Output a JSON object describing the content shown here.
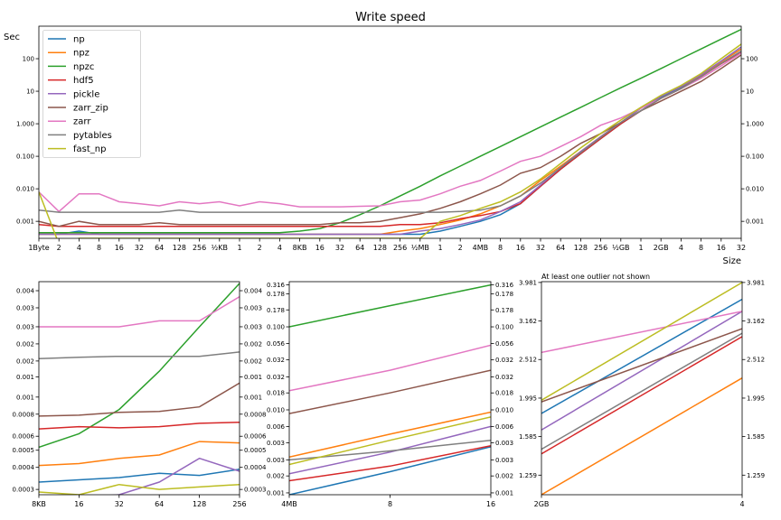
{
  "colors": {
    "np": "#1f77b4",
    "npz": "#ff7f0e",
    "npzc": "#2ca02c",
    "hdf5": "#d62728",
    "pickle": "#9467bd",
    "zarr_zip": "#8c564b",
    "zarr": "#e377c2",
    "pytables": "#7f7f7f",
    "fast_np": "#bcbd22"
  },
  "chart_data": [
    {
      "type": "line",
      "panel": "main",
      "title": "Write speed",
      "xlabel": "Size",
      "ylabel": "Sec",
      "yscale": "log",
      "grid": false,
      "legend_position": "upper-left",
      "x_tick_labels": [
        "1Byte",
        "2",
        "4",
        "8",
        "16",
        "32",
        "64",
        "128",
        "256",
        "½KB",
        "1",
        "2",
        "4",
        "8KB",
        "16",
        "32",
        "64",
        "128",
        "256",
        "½MB",
        "1",
        "2",
        "4MB",
        "8",
        "16",
        "32",
        "64",
        "128",
        "256",
        "½GB",
        "1",
        "2GB",
        "4",
        "8",
        "16",
        "32"
      ],
      "y_tick_values": [
        0.001,
        0.01,
        0.1,
        1,
        10,
        100
      ],
      "y_tick_labels": [
        "0.001",
        "0.010",
        "0.100",
        "1.000",
        "10",
        "100"
      ],
      "ylim": [
        0.0003,
        1000
      ],
      "series": [
        {
          "name": "np",
          "key": "np",
          "values": [
            0.0004,
            0.0004,
            0.0005,
            0.0004,
            0.0004,
            0.0004,
            0.0004,
            0.0004,
            0.0004,
            0.0004,
            0.0004,
            0.0004,
            0.0004,
            0.0004,
            0.0004,
            0.0004,
            0.0004,
            0.0004,
            0.0004,
            0.0004,
            0.0005,
            0.0007,
            0.001,
            0.0016,
            0.0035,
            0.012,
            0.04,
            0.12,
            0.35,
            1.0,
            2.5,
            6.5,
            13,
            30,
            80,
            200
          ]
        },
        {
          "name": "npz",
          "key": "npz",
          "values": [
            0.0004,
            0.0004,
            0.0004,
            0.0004,
            0.0004,
            0.0004,
            0.0004,
            0.0004,
            0.0004,
            0.0004,
            0.0004,
            0.0004,
            0.0004,
            0.0004,
            0.0004,
            0.0004,
            0.0004,
            0.0004,
            0.0005,
            0.0006,
            0.0008,
            0.0011,
            0.0017,
            0.003,
            0.006,
            0.018,
            0.05,
            0.14,
            0.4,
            1.1,
            3,
            7,
            14,
            30,
            80,
            200
          ]
        },
        {
          "name": "npzc",
          "key": "npzc",
          "values": [
            0.00045,
            0.00045,
            0.00045,
            0.00045,
            0.00045,
            0.00045,
            0.00045,
            0.00045,
            0.00045,
            0.00045,
            0.00045,
            0.00045,
            0.00045,
            0.0005,
            0.0006,
            0.0009,
            0.0016,
            0.003,
            0.006,
            0.012,
            0.025,
            0.05,
            0.1,
            0.2,
            0.4,
            0.8,
            1.6,
            3.2,
            6.4,
            12.8,
            25,
            50,
            100,
            200,
            400,
            800
          ]
        },
        {
          "name": "hdf5",
          "key": "hdf5",
          "values": [
            0.0008,
            0.0007,
            0.0007,
            0.0007,
            0.0007,
            0.0007,
            0.0007,
            0.0007,
            0.0007,
            0.0007,
            0.0007,
            0.0007,
            0.0007,
            0.0007,
            0.0007,
            0.0007,
            0.0007,
            0.0007,
            0.0008,
            0.0008,
            0.0009,
            0.0012,
            0.0015,
            0.002,
            0.0035,
            0.012,
            0.04,
            0.12,
            0.35,
            1.0,
            2.5,
            6,
            12,
            28,
            70,
            160
          ]
        },
        {
          "name": "pickle",
          "key": "pickle",
          "values": [
            0.0004,
            0.0004,
            0.0004,
            0.0004,
            0.0004,
            0.0004,
            0.0004,
            0.0004,
            0.0004,
            0.0004,
            0.0004,
            0.0004,
            0.0004,
            0.0004,
            0.0004,
            0.0004,
            0.0004,
            0.0004,
            0.0004,
            0.0005,
            0.0006,
            0.0008,
            0.0011,
            0.002,
            0.004,
            0.013,
            0.045,
            0.14,
            0.4,
            1.1,
            3,
            7,
            14,
            32,
            85,
            230
          ]
        },
        {
          "name": "zarr_zip",
          "key": "zarr_zip",
          "values": [
            0.001,
            0.0007,
            0.001,
            0.0008,
            0.0008,
            0.0008,
            0.0009,
            0.0008,
            0.0008,
            0.0008,
            0.0008,
            0.0008,
            0.0008,
            0.0008,
            0.0008,
            0.0009,
            0.0009,
            0.001,
            0.0013,
            0.0017,
            0.0025,
            0.004,
            0.007,
            0.013,
            0.03,
            0.045,
            0.1,
            0.25,
            0.5,
            1.1,
            2.5,
            5,
            10,
            20,
            50,
            130
          ]
        },
        {
          "name": "zarr",
          "key": "zarr",
          "values": [
            0.008,
            0.002,
            0.007,
            0.007,
            0.004,
            0.0035,
            0.003,
            0.004,
            0.0035,
            0.004,
            0.003,
            0.004,
            0.0035,
            0.0028,
            0.0028,
            0.0028,
            0.0029,
            0.003,
            0.004,
            0.0045,
            0.007,
            0.012,
            0.018,
            0.035,
            0.07,
            0.1,
            0.2,
            0.4,
            0.9,
            1.5,
            3,
            6,
            12,
            25,
            60,
            150
          ]
        },
        {
          "name": "pytables",
          "key": "pytables",
          "values": [
            0.0022,
            0.0019,
            0.0019,
            0.0019,
            0.0019,
            0.0019,
            0.0019,
            0.0022,
            0.0019,
            0.0019,
            0.0019,
            0.0019,
            0.0019,
            0.0019,
            0.0019,
            0.0019,
            0.0019,
            0.0019,
            0.0019,
            0.0019,
            0.0019,
            0.002,
            0.0022,
            0.003,
            0.006,
            0.015,
            0.045,
            0.13,
            0.38,
            1.1,
            2.5,
            6,
            12,
            28,
            72,
            170
          ]
        },
        {
          "name": "fast_np",
          "key": "fast_np",
          "values": [
            0.008,
            0.0002,
            0.0003,
            0.0003,
            0.0003,
            0.0003,
            0.0003,
            0.0003,
            0.0003,
            0.0003,
            0.0003,
            0.0003,
            0.0003,
            0.0003,
            0.0003,
            0.0003,
            0.0003,
            0.0003,
            0.0003,
            0.0003,
            0.001,
            0.0015,
            0.0025,
            0.004,
            0.008,
            0.02,
            0.06,
            0.18,
            0.5,
            1.3,
            3.2,
            7.5,
            15,
            35,
            100,
            280
          ]
        }
      ]
    },
    {
      "type": "line",
      "panel": "small-sizes",
      "x_tick_labels": [
        "8KB",
        "16",
        "32",
        "64",
        "128",
        "256"
      ],
      "yscale": "log",
      "ylim": [
        0.00028,
        0.0045
      ],
      "y_ticks": [
        {
          "v": 0.0003,
          "l": "0.0003"
        },
        {
          "v": 0.0004,
          "l": "0.0004"
        },
        {
          "v": 0.0005,
          "l": "0.0005"
        },
        {
          "v": 0.0006,
          "l": "0.0006"
        },
        {
          "v": 0.0008,
          "l": "0.0008"
        },
        {
          "v": 0.001,
          "l": "0.001"
        },
        {
          "v": 0.0013,
          "l": "0.001"
        },
        {
          "v": 0.0016,
          "l": "0.002"
        },
        {
          "v": 0.002,
          "l": "0.002"
        },
        {
          "v": 0.0025,
          "l": "0.003"
        },
        {
          "v": 0.0032,
          "l": "0.003"
        },
        {
          "v": 0.004,
          "l": "0.004"
        }
      ],
      "series": [
        {
          "key": "np",
          "values": [
            0.00033,
            0.00034,
            0.00035,
            0.00037,
            0.00036,
            0.00039
          ]
        },
        {
          "key": "npz",
          "values": [
            0.00041,
            0.00042,
            0.00045,
            0.00047,
            0.00056,
            0.00055
          ]
        },
        {
          "key": "npzc",
          "values": [
            0.00052,
            0.00062,
            0.00085,
            0.0014,
            0.0025,
            0.0044
          ]
        },
        {
          "key": "hdf5",
          "values": [
            0.00066,
            0.00068,
            0.00067,
            0.00068,
            0.00071,
            0.00072
          ]
        },
        {
          "key": "pickle",
          "values": [
            0.00027,
            0.00027,
            0.00028,
            0.00033,
            0.00045,
            0.00038
          ]
        },
        {
          "key": "zarr_zip",
          "values": [
            0.00078,
            0.00079,
            0.00082,
            0.00083,
            0.00088,
            0.0012
          ]
        },
        {
          "key": "zarr",
          "values": [
            0.0025,
            0.0025,
            0.0025,
            0.0027,
            0.0027,
            0.0037
          ]
        },
        {
          "key": "pytables",
          "values": [
            0.00165,
            0.00168,
            0.0017,
            0.0017,
            0.0017,
            0.0018
          ]
        },
        {
          "key": "fast_np",
          "values": [
            0.00029,
            0.00028,
            0.00032,
            0.0003,
            0.00031,
            0.00032
          ]
        }
      ]
    },
    {
      "type": "line",
      "panel": "medium-sizes",
      "x_tick_labels": [
        "4MB",
        "8",
        "16"
      ],
      "yscale": "log",
      "ylim": [
        0.00095,
        0.35
      ],
      "y_ticks": [
        {
          "v": 0.001,
          "l": "0.001"
        },
        {
          "v": 0.0016,
          "l": "0.002"
        },
        {
          "v": 0.0025,
          "l": "0.003"
        },
        {
          "v": 0.004,
          "l": "0.003"
        },
        {
          "v": 0.0063,
          "l": "0.006"
        },
        {
          "v": 0.01,
          "l": "0.010"
        },
        {
          "v": 0.016,
          "l": "0.018"
        },
        {
          "v": 0.025,
          "l": "0.032"
        },
        {
          "v": 0.04,
          "l": "0.032"
        },
        {
          "v": 0.063,
          "l": "0.056"
        },
        {
          "v": 0.1,
          "l": "0.100"
        },
        {
          "v": 0.16,
          "l": "0.178"
        },
        {
          "v": 0.25,
          "l": "0.178"
        },
        {
          "v": 0.32,
          "l": "0.316"
        }
      ],
      "series": [
        {
          "key": "np",
          "values": [
            0.00095,
            0.0018,
            0.0036
          ]
        },
        {
          "key": "npz",
          "values": [
            0.0027,
            0.0051,
            0.0094
          ]
        },
        {
          "key": "npzc",
          "values": [
            0.1,
            0.18,
            0.32
          ]
        },
        {
          "key": "hdf5",
          "values": [
            0.0014,
            0.0021,
            0.0037
          ]
        },
        {
          "key": "pickle",
          "values": [
            0.0017,
            0.0031,
            0.0063
          ]
        },
        {
          "key": "zarr_zip",
          "values": [
            0.009,
            0.016,
            0.03
          ]
        },
        {
          "key": "zarr",
          "values": [
            0.017,
            0.03,
            0.06
          ]
        },
        {
          "key": "pytables",
          "values": [
            0.0025,
            0.0032,
            0.0043
          ]
        },
        {
          "key": "fast_np",
          "values": [
            0.0022,
            0.0043,
            0.0082
          ]
        }
      ]
    },
    {
      "type": "line",
      "panel": "large-sizes",
      "note": "At least one outlier not shown",
      "x_tick_labels": [
        "2GB",
        "4"
      ],
      "yscale": "log",
      "ylim": [
        1.12,
        4.0
      ],
      "y_ticks": [
        {
          "v": 1.259,
          "l": "1.259"
        },
        {
          "v": 1.585,
          "l": "1.585"
        },
        {
          "v": 1.995,
          "l": "1.995"
        },
        {
          "v": 2.512,
          "l": "2.512"
        },
        {
          "v": 3.162,
          "l": "3.162"
        },
        {
          "v": 3.981,
          "l": "3.981"
        }
      ],
      "series": [
        {
          "key": "np",
          "values": [
            1.82,
            3.6
          ]
        },
        {
          "key": "npz",
          "values": [
            1.12,
            2.25
          ]
        },
        {
          "key": "hdf5",
          "values": [
            1.43,
            2.88
          ]
        },
        {
          "key": "pickle",
          "values": [
            1.65,
            3.35
          ]
        },
        {
          "key": "zarr_zip",
          "values": [
            1.95,
            3.02
          ]
        },
        {
          "key": "zarr",
          "values": [
            2.62,
            3.35
          ]
        },
        {
          "key": "pytables",
          "values": [
            1.47,
            2.94
          ]
        },
        {
          "key": "fast_np",
          "values": [
            1.97,
            3.98
          ]
        }
      ]
    }
  ]
}
